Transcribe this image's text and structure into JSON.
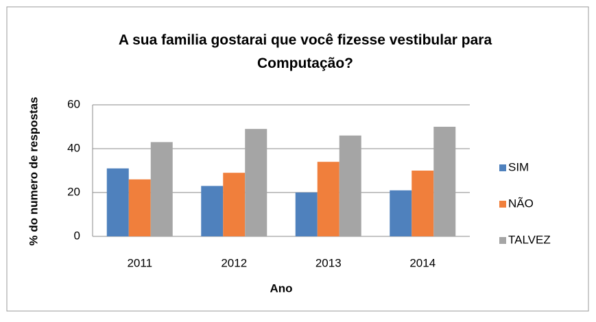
{
  "chart_data": {
    "type": "bar",
    "title": "A sua familia gostarai que  você fizesse vestibular para Computação?",
    "xlabel": "Ano",
    "ylabel": "% do numero de respostas",
    "categories": [
      "2011",
      "2012",
      "2013",
      "2014"
    ],
    "series": [
      {
        "name": "SIM",
        "color": "#4f81bd",
        "values": [
          31,
          23,
          20,
          21
        ]
      },
      {
        "name": "NÃO",
        "color": "#f07f3c",
        "values": [
          26,
          29,
          34,
          30
        ]
      },
      {
        "name": "TALVEZ",
        "color": "#a5a5a5",
        "values": [
          43,
          49,
          46,
          50
        ]
      }
    ],
    "ylim": [
      0,
      60
    ],
    "yticks": [
      0,
      20,
      40,
      60
    ],
    "grid": true,
    "legend": "right"
  }
}
